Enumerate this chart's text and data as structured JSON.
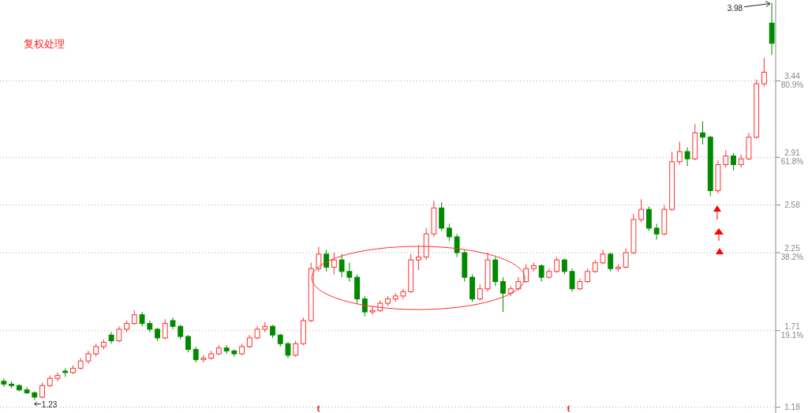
{
  "chart_data": {
    "type": "candlestick",
    "title": "复权处理",
    "categories": [
      null,
      null,
      null,
      null,
      null,
      null,
      null,
      null,
      null,
      null,
      null,
      null,
      null,
      null,
      null,
      null,
      null,
      null,
      null,
      null,
      null,
      null,
      null,
      null,
      null,
      null,
      null,
      null,
      null,
      null,
      null,
      null,
      null,
      null,
      null,
      null,
      null,
      null,
      null,
      null,
      null,
      null,
      null,
      null,
      null,
      null,
      null,
      null,
      null,
      null,
      null,
      null,
      null,
      null,
      null,
      null,
      null,
      null,
      null,
      null,
      null,
      null,
      null,
      null,
      null,
      null,
      null,
      null,
      null,
      null,
      null,
      null,
      null,
      null,
      null,
      null,
      null,
      null,
      null,
      null,
      null,
      null,
      null,
      null,
      null,
      null,
      null,
      null,
      null,
      null,
      null,
      null,
      null,
      null,
      null,
      null,
      null,
      null,
      null,
      null,
      null
    ],
    "ohlc": [
      [
        1.36,
        1.38,
        1.32,
        1.34
      ],
      [
        1.34,
        1.36,
        1.31,
        1.33
      ],
      [
        1.33,
        1.34,
        1.29,
        1.3
      ],
      [
        1.3,
        1.32,
        1.27,
        1.28
      ],
      [
        1.28,
        1.29,
        1.23,
        1.25
      ],
      [
        1.25,
        1.35,
        1.24,
        1.33
      ],
      [
        1.33,
        1.4,
        1.32,
        1.38
      ],
      [
        1.38,
        1.42,
        1.36,
        1.4
      ],
      [
        1.43,
        1.45,
        1.39,
        1.42
      ],
      [
        1.42,
        1.47,
        1.41,
        1.45
      ],
      [
        1.45,
        1.52,
        1.44,
        1.5
      ],
      [
        1.5,
        1.57,
        1.48,
        1.55
      ],
      [
        1.55,
        1.62,
        1.53,
        1.6
      ],
      [
        1.6,
        1.65,
        1.58,
        1.63
      ],
      [
        1.68,
        1.7,
        1.62,
        1.64
      ],
      [
        1.64,
        1.74,
        1.63,
        1.72
      ],
      [
        1.72,
        1.78,
        1.7,
        1.76
      ],
      [
        1.76,
        1.85,
        1.75,
        1.82
      ],
      [
        1.82,
        1.84,
        1.74,
        1.76
      ],
      [
        1.76,
        1.78,
        1.7,
        1.72
      ],
      [
        1.72,
        1.73,
        1.64,
        1.66
      ],
      [
        1.66,
        1.79,
        1.65,
        1.76
      ],
      [
        1.78,
        1.8,
        1.72,
        1.74
      ],
      [
        1.74,
        1.75,
        1.65,
        1.67
      ],
      [
        1.67,
        1.68,
        1.56,
        1.58
      ],
      [
        1.58,
        1.6,
        1.49,
        1.51
      ],
      [
        1.51,
        1.54,
        1.49,
        1.52
      ],
      [
        1.52,
        1.57,
        1.51,
        1.55
      ],
      [
        1.55,
        1.61,
        1.54,
        1.59
      ],
      [
        1.59,
        1.61,
        1.55,
        1.57
      ],
      [
        1.57,
        1.58,
        1.53,
        1.55
      ],
      [
        1.55,
        1.62,
        1.54,
        1.6
      ],
      [
        1.6,
        1.68,
        1.59,
        1.66
      ],
      [
        1.66,
        1.74,
        1.65,
        1.72
      ],
      [
        1.72,
        1.77,
        1.7,
        1.74
      ],
      [
        1.74,
        1.75,
        1.66,
        1.68
      ],
      [
        1.68,
        1.69,
        1.6,
        1.62
      ],
      [
        1.62,
        1.63,
        1.52,
        1.54
      ],
      [
        1.54,
        1.64,
        1.53,
        1.62
      ],
      [
        1.62,
        1.8,
        1.61,
        1.78
      ],
      [
        1.78,
        2.18,
        1.77,
        2.14
      ],
      [
        2.14,
        2.29,
        2.12,
        2.24
      ],
      [
        2.24,
        2.27,
        2.12,
        2.15
      ],
      [
        2.15,
        2.25,
        2.1,
        2.2
      ],
      [
        2.2,
        2.24,
        2.08,
        2.12
      ],
      [
        2.12,
        2.18,
        2.05,
        2.08
      ],
      [
        2.08,
        2.1,
        1.9,
        1.93
      ],
      [
        1.93,
        1.95,
        1.81,
        1.84
      ],
      [
        1.84,
        1.88,
        1.82,
        1.85
      ],
      [
        1.85,
        1.92,
        1.84,
        1.9
      ],
      [
        1.9,
        1.95,
        1.88,
        1.93
      ],
      [
        1.93,
        1.97,
        1.91,
        1.95
      ],
      [
        1.95,
        2.0,
        1.93,
        1.98
      ],
      [
        1.98,
        2.24,
        1.97,
        2.2
      ],
      [
        2.2,
        2.3,
        2.13,
        2.22
      ],
      [
        2.22,
        2.42,
        2.2,
        2.38
      ],
      [
        2.38,
        2.61,
        2.36,
        2.56
      ],
      [
        2.56,
        2.6,
        2.4,
        2.42
      ],
      [
        2.42,
        2.45,
        2.33,
        2.36
      ],
      [
        2.36,
        2.38,
        2.22,
        2.25
      ],
      [
        2.25,
        2.27,
        2.05,
        2.08
      ],
      [
        2.08,
        2.1,
        1.91,
        1.93
      ],
      [
        1.93,
        2.03,
        1.92,
        2.0
      ],
      [
        2.0,
        2.25,
        1.98,
        2.2
      ],
      [
        2.2,
        2.22,
        2.02,
        2.05
      ],
      [
        2.05,
        2.08,
        1.84,
        1.97
      ],
      [
        1.97,
        2.02,
        1.95,
        2.0
      ],
      [
        2.0,
        2.08,
        1.99,
        2.05
      ],
      [
        2.05,
        2.17,
        2.04,
        2.14
      ],
      [
        2.14,
        2.18,
        2.12,
        2.16
      ],
      [
        2.16,
        2.17,
        2.05,
        2.08
      ],
      [
        2.08,
        2.14,
        2.07,
        2.12
      ],
      [
        2.12,
        2.22,
        2.11,
        2.2
      ],
      [
        2.2,
        2.21,
        2.1,
        2.12
      ],
      [
        2.12,
        2.14,
        1.98,
        2.0
      ],
      [
        2.0,
        2.07,
        1.99,
        2.05
      ],
      [
        2.05,
        2.14,
        2.04,
        2.12
      ],
      [
        2.12,
        2.2,
        2.11,
        2.18
      ],
      [
        2.18,
        2.27,
        2.17,
        2.24
      ],
      [
        2.24,
        2.25,
        2.12,
        2.14
      ],
      [
        2.14,
        2.17,
        2.12,
        2.15
      ],
      [
        2.15,
        2.28,
        2.14,
        2.25
      ],
      [
        2.25,
        2.52,
        2.24,
        2.48
      ],
      [
        2.48,
        2.62,
        2.46,
        2.55
      ],
      [
        2.55,
        2.57,
        2.4,
        2.42
      ],
      [
        2.42,
        2.45,
        2.34,
        2.38
      ],
      [
        2.38,
        2.58,
        2.37,
        2.55
      ],
      [
        2.55,
        2.95,
        2.54,
        2.88
      ],
      [
        2.88,
        3.02,
        2.86,
        2.95
      ],
      [
        2.95,
        2.98,
        2.85,
        2.9
      ],
      [
        2.9,
        3.14,
        2.89,
        3.08
      ],
      [
        3.08,
        3.16,
        3.0,
        3.05
      ],
      [
        3.05,
        3.06,
        2.64,
        2.68
      ],
      [
        2.68,
        2.89,
        2.66,
        2.86
      ],
      [
        2.86,
        2.96,
        2.84,
        2.92
      ],
      [
        2.92,
        2.94,
        2.82,
        2.86
      ],
      [
        2.86,
        2.93,
        2.84,
        2.9
      ],
      [
        2.9,
        3.08,
        2.89,
        3.05
      ],
      [
        3.05,
        3.45,
        3.04,
        3.42
      ],
      [
        3.42,
        3.6,
        3.4,
        3.5
      ],
      [
        3.84,
        3.98,
        3.62,
        3.7
      ]
    ],
    "ylim": [
      1.14,
      4.0
    ],
    "yticks": [
      {
        "value": 1.18,
        "label": "1.18"
      },
      {
        "value": 1.71,
        "label": "1.71\n19.1%"
      },
      {
        "value": 2.25,
        "label": "2.25\n38.2%"
      },
      {
        "value": 2.58,
        "label": "2.58"
      },
      {
        "value": 2.91,
        "label": "2.91\n61.8%"
      },
      {
        "value": 3.44,
        "label": "3.44\n80.9%"
      }
    ],
    "grid": "y",
    "annotations": [
      "3.98",
      "1.23"
    ]
  }
}
